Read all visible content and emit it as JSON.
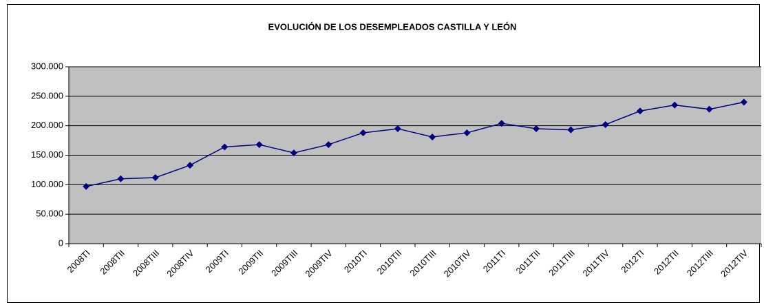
{
  "chart_data": {
    "type": "line",
    "title": "EVOLUCIÓN DE LOS DESEMPLEADOS CASTILLA Y LEÓN",
    "categories": [
      "2008TI",
      "2008TII",
      "2008TIII",
      "2008TIV",
      "2009TI",
      "2009TII",
      "2009TIII",
      "2009TIV",
      "2010TI",
      "2010TII",
      "2010TIII",
      "2010TIV",
      "2011TI",
      "2011TII",
      "2011TIII",
      "2011TIV",
      "2012TI",
      "2012TII",
      "2012TIII",
      "2012TIV"
    ],
    "values": [
      97000,
      110000,
      112000,
      133000,
      164000,
      168000,
      154000,
      168000,
      188000,
      195000,
      181000,
      188000,
      204000,
      195000,
      193000,
      202000,
      225000,
      235000,
      228000,
      240000
    ],
    "color": "#000080",
    "ylim": [
      0,
      300000
    ],
    "yticks": [
      0,
      {
        "value": 50000,
        "label": "50.000"
      },
      {
        "value": 100000,
        "label": "100.000"
      },
      {
        "value": 150000,
        "label": "150.000"
      },
      {
        "value": 200000,
        "label": "200.000"
      },
      {
        "value": 250000,
        "label": "250.000"
      },
      {
        "value": 300000,
        "label": "300.000"
      }
    ],
    "grid": true
  }
}
